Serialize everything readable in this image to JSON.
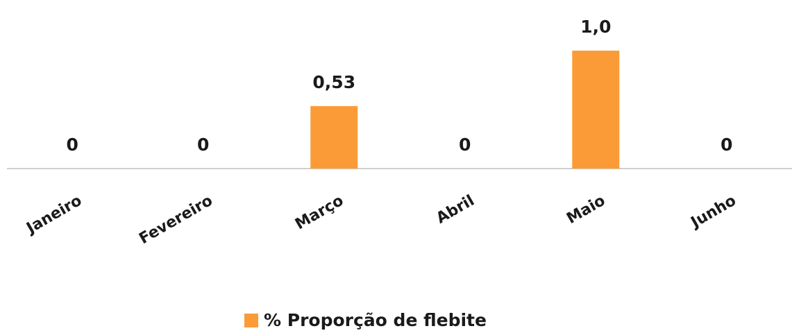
{
  "chart_data": {
    "type": "bar",
    "categories": [
      "Janeiro",
      "Fevereiro",
      "Março",
      "Abril",
      "Maio",
      "Junho"
    ],
    "series": [
      {
        "name": "% Proporção de flebite",
        "color": "#fb9b37",
        "values": [
          0,
          0,
          0.53,
          0,
          1.0,
          0
        ],
        "value_labels": [
          "0",
          "0",
          "0,53",
          "0",
          "1,0",
          "0"
        ]
      }
    ],
    "legend": "bottom"
  }
}
